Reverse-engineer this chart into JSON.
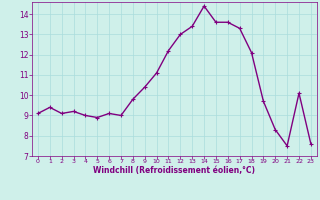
{
  "x": [
    0,
    1,
    2,
    3,
    4,
    5,
    6,
    7,
    8,
    9,
    10,
    11,
    12,
    13,
    14,
    15,
    16,
    17,
    18,
    19,
    20,
    21,
    22,
    23
  ],
  "y": [
    9.1,
    9.4,
    9.1,
    9.2,
    9.0,
    8.9,
    9.1,
    9.0,
    9.8,
    10.4,
    11.1,
    12.2,
    13.0,
    13.4,
    14.4,
    13.6,
    13.6,
    13.3,
    12.1,
    9.7,
    8.3,
    7.5,
    10.1,
    7.6
  ],
  "line_color": "#800080",
  "marker": "+",
  "marker_size": 3,
  "bg_color": "#cff0ea",
  "grid_color": "#aadddd",
  "xlabel": "Windchill (Refroidissement éolien,°C)",
  "xlabel_color": "#800080",
  "tick_color": "#800080",
  "ylim": [
    7,
    14.6
  ],
  "xlim": [
    -0.5,
    23.5
  ],
  "yticks": [
    7,
    8,
    9,
    10,
    11,
    12,
    13,
    14
  ],
  "xticks": [
    0,
    1,
    2,
    3,
    4,
    5,
    6,
    7,
    8,
    9,
    10,
    11,
    12,
    13,
    14,
    15,
    16,
    17,
    18,
    19,
    20,
    21,
    22,
    23
  ],
  "linewidth": 1.0
}
